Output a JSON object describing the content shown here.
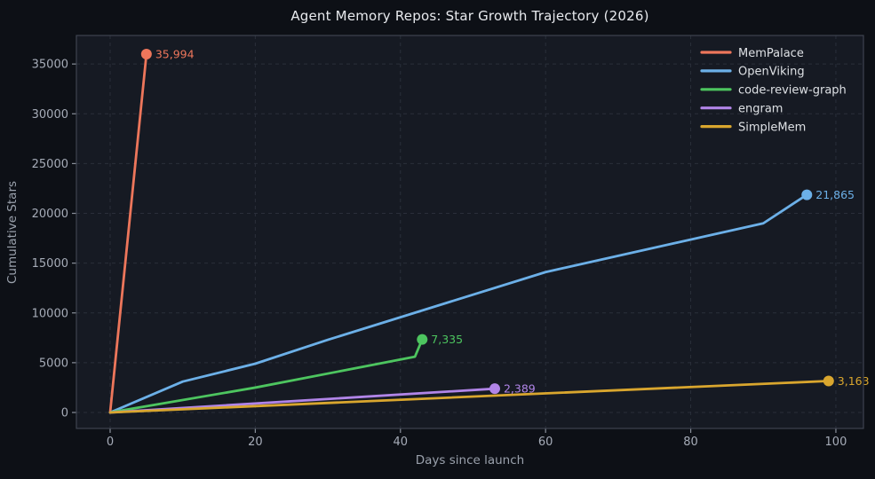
{
  "chart_data": {
    "type": "line",
    "title": "Agent Memory Repos: Star Growth Trajectory (2026)",
    "xlabel": "Days since launch",
    "ylabel": "Cumulative Stars",
    "xlim": [
      -4.65,
      103.8
    ],
    "ylim": [
      -1604,
      37865
    ],
    "x_ticks": [
      0,
      20,
      40,
      60,
      80,
      100
    ],
    "y_ticks": [
      0,
      5000,
      10000,
      15000,
      20000,
      25000,
      30000,
      35000
    ],
    "grid": "dashed",
    "legend_position": "upper right",
    "series": [
      {
        "name": "MemPalace",
        "color": "#ED765B",
        "points": [
          [
            0,
            0
          ],
          [
            5,
            35994
          ]
        ],
        "end_label": "35,994",
        "final_value": 35994,
        "final_day": 5
      },
      {
        "name": "OpenViking",
        "color": "#6CB0E8",
        "points": [
          [
            0,
            0
          ],
          [
            10,
            3100
          ],
          [
            20,
            4900
          ],
          [
            30,
            7300
          ],
          [
            60,
            14100
          ],
          [
            90,
            19000
          ],
          [
            96,
            21865
          ]
        ],
        "end_label": "21,865",
        "final_value": 21865,
        "final_day": 96
      },
      {
        "name": "code-review-graph",
        "color": "#4DC55F",
        "points": [
          [
            0,
            0
          ],
          [
            20,
            2500
          ],
          [
            42,
            5600
          ],
          [
            43,
            7335
          ]
        ],
        "end_label": "7,335",
        "final_value": 7335,
        "final_day": 43
      },
      {
        "name": "engram",
        "color": "#B185E8",
        "points": [
          [
            0,
            0
          ],
          [
            53,
            2389
          ]
        ],
        "end_label": "2,389",
        "final_value": 2389,
        "final_day": 53
      },
      {
        "name": "SimpleMem",
        "color": "#D9A62E",
        "points": [
          [
            0,
            0
          ],
          [
            99,
            3163
          ]
        ],
        "end_label": "3,163",
        "final_value": 3163,
        "final_day": 99
      }
    ],
    "theme": {
      "background": "#0D1016",
      "plot_background": "#161A23",
      "grid": "#2A2F3A",
      "spine": "#3E4450",
      "tick_mark": "#8A909B",
      "tick_label": "#A6ACB8",
      "axis_label": "#9AA1AC",
      "title_color": "#E8EAEE",
      "legend_text": "#DDE0E4"
    }
  }
}
